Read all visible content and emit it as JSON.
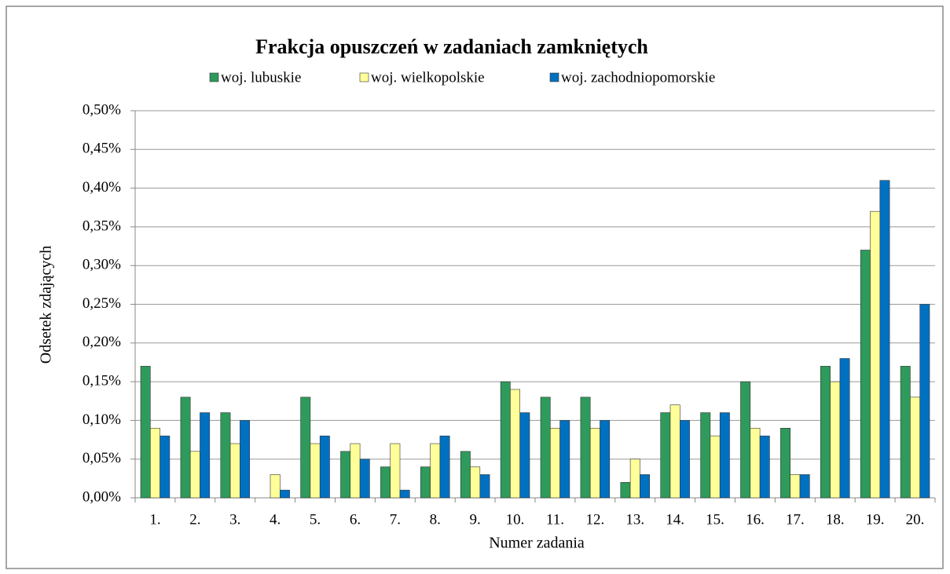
{
  "chart_data": {
    "type": "bar",
    "title": "Frakcja opuszczeń w zadaniach zamkniętych",
    "x_label": "Numer zadania",
    "y_label": "Odsetek zdających",
    "categories": [
      "1.",
      "2.",
      "3.",
      "4.",
      "5.",
      "6.",
      "7.",
      "8.",
      "9.",
      "10.",
      "11.",
      "12.",
      "13.",
      "14.",
      "15.",
      "16.",
      "17.",
      "18.",
      "19.",
      "20."
    ],
    "series": [
      {
        "name": "woj. lubuskie",
        "color": "#2e9a5c",
        "values": [
          0.17,
          0.13,
          0.11,
          0,
          0.13,
          0.06,
          0.04,
          0.04,
          0.06,
          0.15,
          0.13,
          0.13,
          0.02,
          0.11,
          0.11,
          0.15,
          0.09,
          0.17,
          0.32,
          0.17
        ]
      },
      {
        "name": "woj. wielkopolskie",
        "color": "#ffff99",
        "values": [
          0.09,
          0.06,
          0.07,
          0.03,
          0.07,
          0.07,
          0.07,
          0.07,
          0.04,
          0.14,
          0.09,
          0.09,
          0.05,
          0.12,
          0.08,
          0.09,
          0.03,
          0.15,
          0.37,
          0.13
        ]
      },
      {
        "name": "woj. zachodniopomorskie",
        "color": "#0070c0",
        "values": [
          0.08,
          0.11,
          0.1,
          0.01,
          0.08,
          0.05,
          0.01,
          0.08,
          0.03,
          0.11,
          0.1,
          0.1,
          0.03,
          0.1,
          0.11,
          0.08,
          0.03,
          0.18,
          0.41,
          0.25
        ]
      }
    ],
    "ylim": [
      0,
      0.5
    ],
    "yticks": [
      {
        "value": 0,
        "label": "0,00%"
      },
      {
        "value": 0.05,
        "label": "0,05%"
      },
      {
        "value": 0.1,
        "label": "0,10%"
      },
      {
        "value": 0.15,
        "label": "0,15%"
      },
      {
        "value": 0.2,
        "label": "0,20%"
      },
      {
        "value": 0.25,
        "label": "0,25%"
      },
      {
        "value": 0.3,
        "label": "0,30%"
      },
      {
        "value": 0.35,
        "label": "0,35%"
      },
      {
        "value": 0.4,
        "label": "0,40%"
      },
      {
        "value": 0.45,
        "label": "0,45%"
      },
      {
        "value": 0.5,
        "label": "0,50%"
      }
    ],
    "grid": true,
    "legend": "top"
  }
}
